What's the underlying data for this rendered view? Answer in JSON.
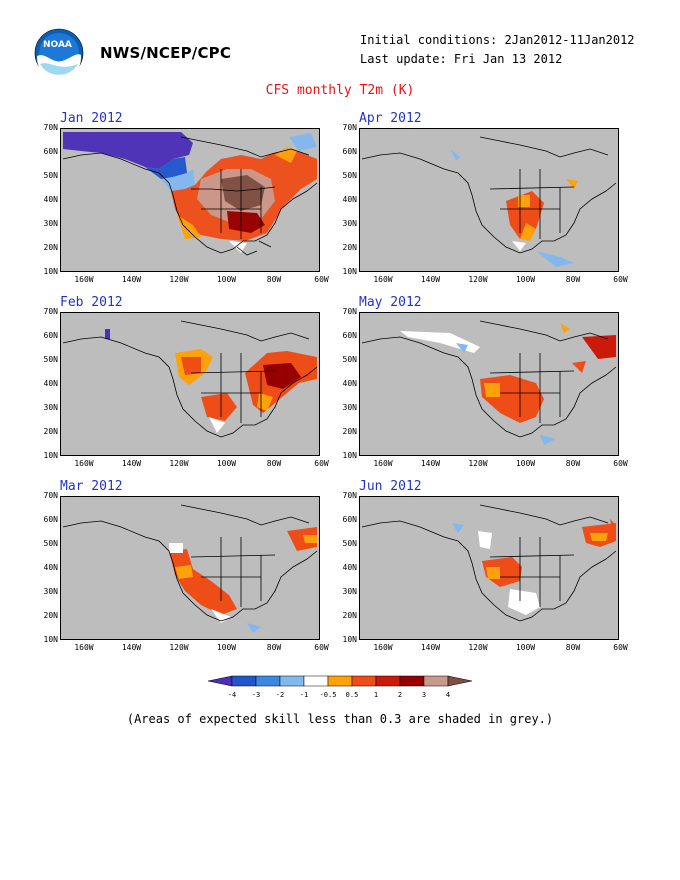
{
  "header": {
    "org": "NWS/NCEP/CPC",
    "initial_conditions": "Initial conditions: 2Jan2012-11Jan2012",
    "last_update": "Last update: Fri Jan 13 2012",
    "title": "CFS monthly T2m (K)"
  },
  "logo": {
    "icon": "noaa-logo",
    "text": "NOAA"
  },
  "axes": {
    "lat_ticks": [
      "70N",
      "60N",
      "50N",
      "40N",
      "30N",
      "20N",
      "10N"
    ],
    "lon_ticks": [
      "160W",
      "140W",
      "120W",
      "100W",
      "80W",
      "60W"
    ]
  },
  "panels": [
    {
      "label": "Jan 2012"
    },
    {
      "label": "Apr 2012"
    },
    {
      "label": "Feb 2012"
    },
    {
      "label": "May 2012"
    },
    {
      "label": "Mar 2012"
    },
    {
      "label": "Jun 2012"
    }
  ],
  "colorbar": {
    "labels": [
      "-4",
      "-3",
      "-2",
      "-1",
      "-0.5",
      "0.5",
      "1",
      "2",
      "3",
      "4"
    ],
    "colors": [
      "#4b2fb8",
      "#2255cc",
      "#3a88e0",
      "#82b8ee",
      "#ffffff",
      "#ffa10a",
      "#ee4d18",
      "#cc1a0a",
      "#960000",
      "#c89a8c",
      "#7e4e44"
    ]
  },
  "colors": {
    "skill_mask": "#bdbdbd",
    "title": "#ee1111",
    "panel_label": "#2233cc"
  },
  "note": "(Areas of expected skill less than 0.3 are shaded in grey.)"
}
